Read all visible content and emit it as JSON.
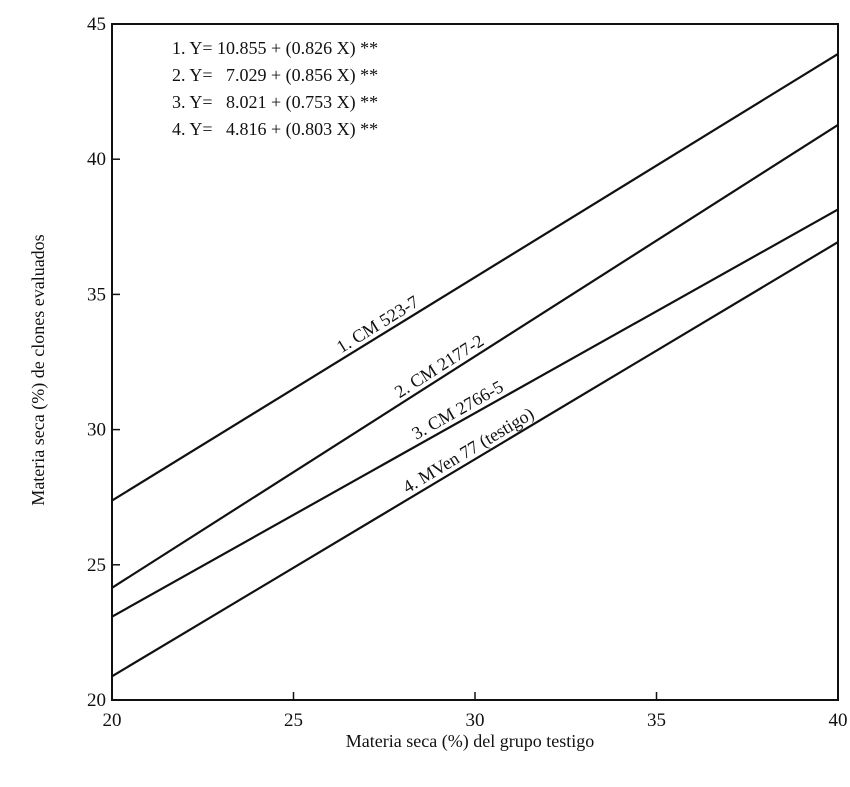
{
  "chart_data": {
    "type": "line",
    "title": "",
    "xlabel": "Materia seca (%) del grupo testigo",
    "ylabel": "Materia seca (%) de clones evaluados",
    "xlim": [
      20,
      40
    ],
    "ylim": [
      20,
      45
    ],
    "x_ticks": [
      "20",
      "25",
      "30",
      "35",
      "40"
    ],
    "y_ticks": [
      "20",
      "25",
      "30",
      "35",
      "40",
      "45"
    ],
    "grid": false,
    "equations": [
      "1. Y= 10.855 + (0.826 X) **",
      "2. Y=   7.029 + (0.856 X) **",
      "3. Y=   8.021 + (0.753 X) **",
      "4. Y=   4.816 + (0.803 X) **"
    ],
    "series": [
      {
        "name": "1. CM 523-7",
        "intercept": 10.855,
        "slope": 0.826,
        "x": [
          20,
          40
        ],
        "y": [
          27.375,
          43.895
        ]
      },
      {
        "name": "2. CM 2177-2",
        "intercept": 7.029,
        "slope": 0.856,
        "x": [
          20,
          40
        ],
        "y": [
          24.149,
          41.269
        ]
      },
      {
        "name": "3. CM 2766-5",
        "intercept": 8.021,
        "slope": 0.753,
        "x": [
          20,
          40
        ],
        "y": [
          23.081,
          38.141
        ]
      },
      {
        "name": "4. MVen 77 (testigo)",
        "intercept": 4.816,
        "slope": 0.803,
        "x": [
          20,
          40
        ],
        "y": [
          20.876,
          36.936
        ]
      }
    ]
  }
}
